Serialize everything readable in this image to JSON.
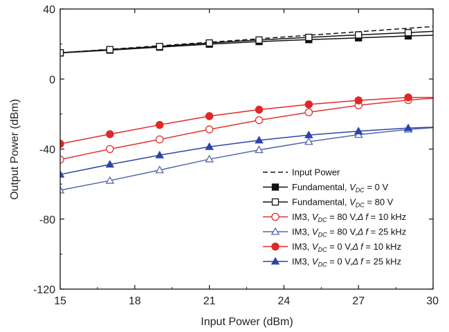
{
  "chart_data": {
    "type": "line",
    "xlabel": "Input Power (dBm)",
    "ylabel": "Output Power (dBm)",
    "xlim": [
      15,
      30
    ],
    "ylim": [
      -120,
      40
    ],
    "xticks": [
      15,
      18,
      21,
      24,
      27,
      30
    ],
    "yticks": [
      -120,
      -80,
      -40,
      0,
      40
    ],
    "grid": false,
    "legend_position": "lower-right",
    "series": [
      {
        "name": "Input Power",
        "color": "#111111",
        "dash": "dashed",
        "marker": "none",
        "filled": false,
        "x": [
          15,
          30
        ],
        "y": [
          15,
          30
        ]
      },
      {
        "name": "Fundamental, V_DC = 0 V",
        "legend": {
          "pre": "Fundamental, ",
          "var": "V",
          "sub": "DC",
          "post": " = 0 V"
        },
        "color": "#111111",
        "dash": "solid",
        "marker": "square",
        "filled": true,
        "x": [
          15,
          17,
          19,
          21,
          23,
          25,
          27,
          29,
          30
        ],
        "y": [
          14.9,
          16.5,
          18.2,
          19.9,
          21.4,
          22.5,
          23.5,
          24.6,
          25
        ]
      },
      {
        "name": "Fundamental, V_DC = 80 V",
        "legend": {
          "pre": "Fundamental, ",
          "var": "V",
          "sub": "DC",
          "post": " = 80 V"
        },
        "color": "#111111",
        "dash": "solid",
        "marker": "square",
        "filled": false,
        "x": [
          15,
          17,
          19,
          21,
          23,
          25,
          27,
          29,
          30
        ],
        "y": [
          15,
          16.8,
          18.6,
          20.6,
          22.3,
          23.8,
          25.2,
          26.5,
          27.2
        ]
      },
      {
        "name": "IM3, V_DC = 80 V, Δf = 10 kHz",
        "legend": {
          "pre": "IM3, ",
          "var": "V",
          "sub": "DC",
          "post": " = 80 V,",
          "delta": "Δ f",
          "post2": " = 10 kHz"
        },
        "color": "#e03030",
        "dash": "solid",
        "marker": "circle",
        "filled": false,
        "x": [
          15,
          17,
          19,
          21,
          23,
          25,
          27,
          29,
          30
        ],
        "y": [
          -46,
          -40,
          -34.5,
          -28.8,
          -23.5,
          -19,
          -15,
          -12,
          -11
        ]
      },
      {
        "name": "IM3, V_DC = 80 V, Δf = 25 kHz",
        "legend": {
          "pre": "IM3, ",
          "var": "V",
          "sub": "DC",
          "post": " = 80 V,",
          "delta": "Δ f",
          "post2": " = 25 kHz"
        },
        "color": "#5566aa",
        "dash": "solid",
        "marker": "triangle",
        "filled": false,
        "x": [
          15,
          17,
          19,
          21,
          23,
          25,
          27,
          29,
          30
        ],
        "y": [
          -63.5,
          -58,
          -52,
          -45.8,
          -40.5,
          -35.8,
          -31.8,
          -28.8,
          -27.8
        ]
      },
      {
        "name": "IM3, V_DC = 0 V, Δf = 10 kHz",
        "legend": {
          "pre": "IM3, ",
          "var": "V",
          "sub": "DC",
          "post": " = 0 V,",
          "delta": "Δ f",
          "post2": " = 10 kHz"
        },
        "color": "#e02828",
        "dash": "solid",
        "marker": "circle",
        "filled": true,
        "x": [
          15,
          17,
          19,
          21,
          23,
          25,
          27,
          29,
          30
        ],
        "y": [
          -37,
          -31.5,
          -26.2,
          -21.2,
          -17.5,
          -14.5,
          -12.2,
          -10.5,
          -10.5
        ]
      },
      {
        "name": "IM3, V_DC = 0 V, Δf = 25 kHz",
        "legend": {
          "pre": "IM3, ",
          "var": "V",
          "sub": "DC",
          "post": " = 0 V,",
          "delta": "Δ f",
          "post2": " = 25 kHz"
        },
        "color": "#2c44a8",
        "dash": "solid",
        "marker": "triangle",
        "filled": true,
        "x": [
          15,
          17,
          19,
          21,
          23,
          25,
          27,
          29,
          30
        ],
        "y": [
          -54.5,
          -48.8,
          -43.5,
          -38.7,
          -35,
          -32,
          -29.8,
          -28,
          -27.5
        ]
      }
    ]
  }
}
